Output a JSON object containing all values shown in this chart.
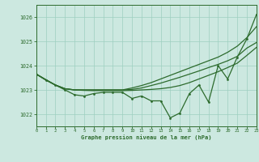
{
  "background_color": "#cce8e0",
  "grid_color": "#9ecfbf",
  "line_color": "#2d6b2d",
  "xlabel": "Graphe pression niveau de la mer (hPa)",
  "x_hours": [
    0,
    1,
    2,
    3,
    4,
    5,
    6,
    7,
    8,
    9,
    10,
    11,
    12,
    13,
    14,
    15,
    16,
    17,
    18,
    19,
    20,
    21,
    22,
    23
  ],
  "ylim": [
    1021.5,
    1026.5
  ],
  "xlim": [
    0,
    23
  ],
  "yticks": [
    1022,
    1023,
    1024,
    1025,
    1026
  ],
  "line_jagged": [
    1023.65,
    1023.4,
    1023.2,
    1023.0,
    1022.8,
    1022.75,
    1022.85,
    1022.9,
    1022.9,
    1022.9,
    1022.65,
    1022.75,
    1022.55,
    1022.55,
    1021.85,
    1022.05,
    1022.85,
    1023.2,
    1022.5,
    1024.0,
    1023.45,
    1024.35,
    1025.1,
    1026.1
  ],
  "line_upper": [
    1023.65,
    1023.42,
    1023.2,
    1023.05,
    1023.0,
    1023.0,
    1023.0,
    1023.0,
    1023.0,
    1023.0,
    1023.08,
    1023.18,
    1023.3,
    1023.45,
    1023.6,
    1023.75,
    1023.9,
    1024.05,
    1024.2,
    1024.35,
    1024.55,
    1024.8,
    1025.15,
    1025.6
  ],
  "line_mid": [
    1023.65,
    1023.42,
    1023.2,
    1023.05,
    1023.0,
    1023.0,
    1023.0,
    1023.0,
    1023.0,
    1023.0,
    1023.02,
    1023.08,
    1023.18,
    1023.28,
    1023.4,
    1023.52,
    1023.65,
    1023.78,
    1023.92,
    1024.05,
    1024.2,
    1024.38,
    1024.72,
    1024.95
  ],
  "line_lower": [
    1023.65,
    1023.42,
    1023.2,
    1023.05,
    1023.0,
    1022.98,
    1022.97,
    1022.97,
    1022.97,
    1022.97,
    1022.98,
    1023.0,
    1023.02,
    1023.05,
    1023.1,
    1023.18,
    1023.3,
    1023.45,
    1023.6,
    1023.75,
    1023.92,
    1024.1,
    1024.42,
    1024.75
  ]
}
